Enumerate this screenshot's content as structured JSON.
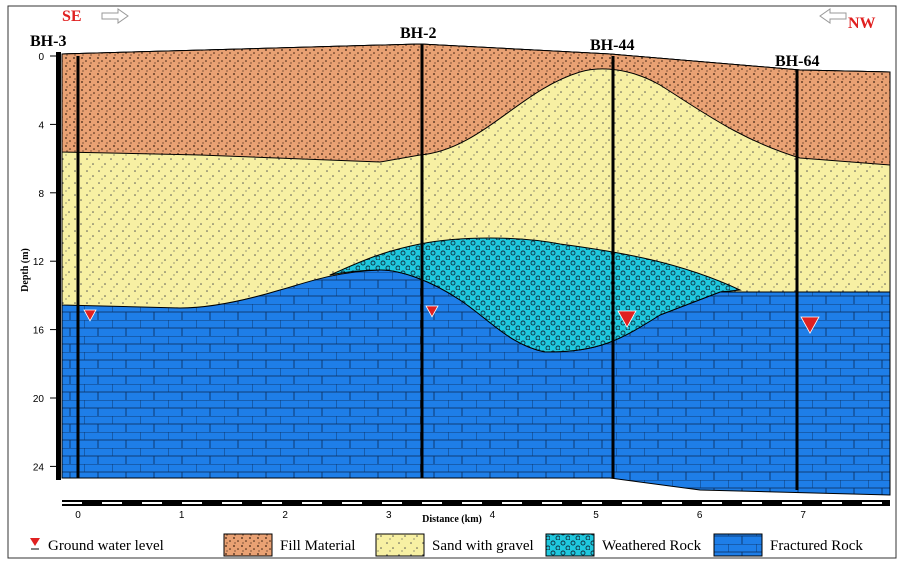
{
  "header": {
    "left_direction": "SE",
    "right_direction": "NW"
  },
  "boreholes": [
    {
      "label": "BH-3"
    },
    {
      "label": "BH-2"
    },
    {
      "label": "BH-44"
    },
    {
      "label": "BH-64"
    }
  ],
  "axes": {
    "y_label": "Depth (m)",
    "y_ticks": [
      0,
      4,
      8,
      12,
      16,
      20,
      24
    ],
    "x_label": "Distance (km)",
    "x_ticks": [
      0,
      1,
      2,
      3,
      4,
      5,
      6,
      7
    ]
  },
  "legend": [
    "Ground water level",
    "Fill Material",
    "Sand with gravel",
    "Weathered Rock",
    "Fractured Rock"
  ]
}
